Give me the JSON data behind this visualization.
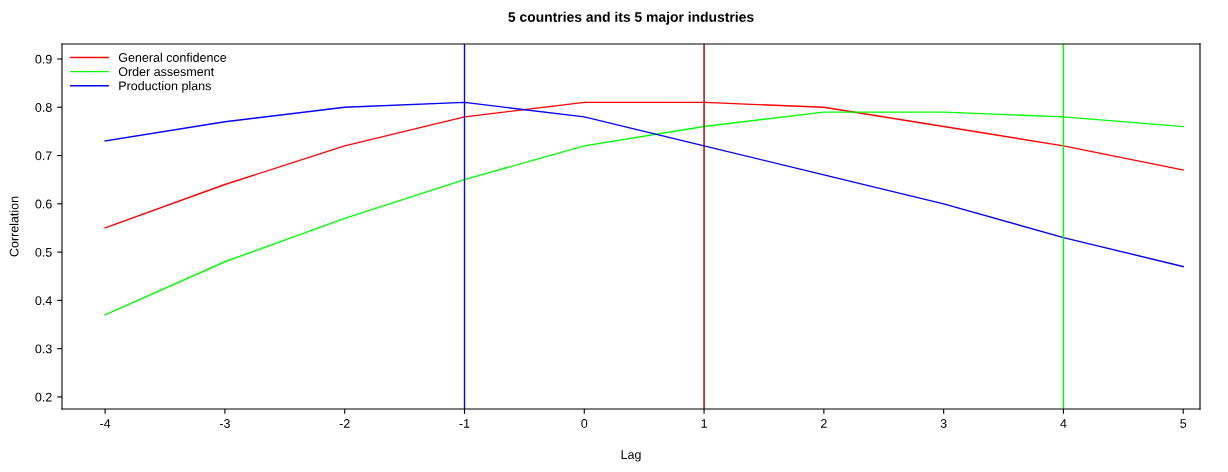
{
  "chart_data": {
    "type": "line",
    "title": "5 countries and its 5 major industries",
    "xlabel": "Lag",
    "ylabel": "Correlation",
    "x": [
      -4,
      -3,
      -2,
      -1,
      0,
      1,
      2,
      3,
      4,
      5
    ],
    "series": [
      {
        "name": "General confidence",
        "color": "#ff0000",
        "values": [
          0.55,
          0.64,
          0.72,
          0.78,
          0.81,
          0.81,
          0.8,
          0.76,
          0.72,
          0.67
        ]
      },
      {
        "name": "Order assesment",
        "color": "#00ff00",
        "values": [
          0.37,
          0.48,
          0.57,
          0.65,
          0.72,
          0.76,
          0.79,
          0.79,
          0.78,
          0.76
        ]
      },
      {
        "name": "Production plans",
        "color": "#0000ff",
        "values": [
          0.73,
          0.77,
          0.8,
          0.81,
          0.78,
          0.72,
          0.66,
          0.6,
          0.53,
          0.47
        ]
      }
    ],
    "ref_lines": [
      {
        "axis": "x",
        "value": -1,
        "color": "#0000ff"
      },
      {
        "axis": "x",
        "value": 1,
        "color": "#8b0000"
      },
      {
        "axis": "x",
        "value": 4,
        "color": "#00ff00"
      }
    ],
    "xlim": [
      -4.36,
      5.14
    ],
    "ylim": [
      0.175,
      0.931
    ],
    "xticks": [
      -4,
      -3,
      -2,
      -1,
      0,
      1,
      2,
      3,
      4,
      5
    ],
    "yticks": [
      0.2,
      0.3,
      0.4,
      0.5,
      0.6,
      0.7,
      0.8,
      0.9
    ],
    "legend": "top left",
    "grid": false
  }
}
